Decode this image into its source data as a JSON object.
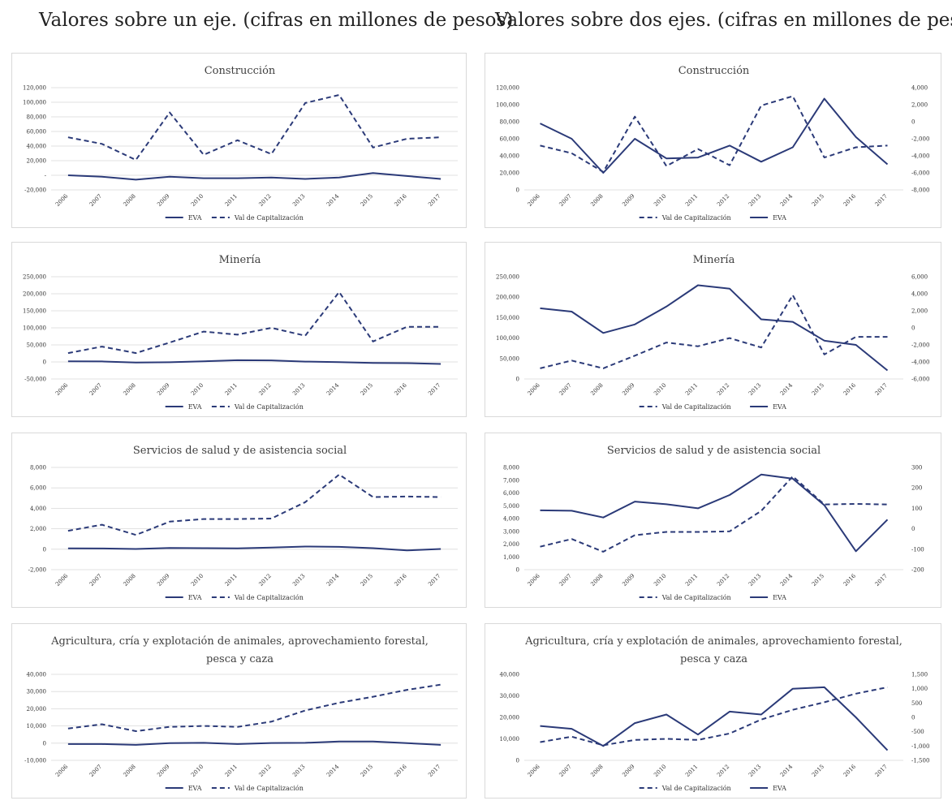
{
  "headings": {
    "left": "Valores sobre un eje. (cifras en millones de pesos)",
    "right": "Valores sobre dos ejes. (cifras en millones de pesos)"
  },
  "colors": {
    "series": "#2b3a78",
    "grid": "#d9d9d9",
    "border": "#d9d9d9"
  },
  "chart_data": [
    {
      "type": "line",
      "title": [
        "Construcción"
      ],
      "x": [
        "2006",
        "2007",
        "2008",
        "2009",
        "2010",
        "2011",
        "2012",
        "2013",
        "2014",
        "2015",
        "2016",
        "2017"
      ],
      "ylim": [
        -20000,
        120000
      ],
      "yticks": [
        -20000,
        0,
        20000,
        40000,
        60000,
        80000,
        100000,
        120000
      ],
      "ytick_labels": [
        "-20,000",
        "-",
        "20,000",
        "40,000",
        "60,000",
        "80,000",
        "100,000",
        "120,000"
      ],
      "legend": [
        "EVA",
        "Val de Capitalización"
      ],
      "series": [
        {
          "name": "EVA",
          "style": "solid",
          "values": [
            0,
            -2000,
            -6000,
            -2000,
            -4000,
            -4000,
            -3000,
            -5000,
            -3000,
            3000,
            -1000,
            -5000
          ]
        },
        {
          "name": "Val de Capitalización",
          "style": "dashed",
          "values": [
            52000,
            43000,
            21000,
            86000,
            28000,
            48000,
            29000,
            99000,
            110000,
            38000,
            50000,
            52000
          ]
        }
      ]
    },
    {
      "type": "line",
      "title": [
        "Construcción"
      ],
      "x": [
        "2006",
        "2007",
        "2008",
        "2009",
        "2010",
        "2011",
        "2012",
        "2013",
        "2014",
        "2015",
        "2016",
        "2017"
      ],
      "ylim": [
        0,
        120000
      ],
      "yticks": [
        0,
        20000,
        40000,
        60000,
        80000,
        100000,
        120000
      ],
      "ytick_labels": [
        "0",
        "20,000",
        "40,000",
        "60,000",
        "80,000",
        "100,000",
        "120,000"
      ],
      "y2lim": [
        -8000,
        4000
      ],
      "y2ticks": [
        -8000,
        -6000,
        -4000,
        -2000,
        0,
        2000,
        4000
      ],
      "y2tick_labels": [
        "-8,000",
        "-6,000",
        "-4,000",
        "-2,000",
        "0",
        "2,000",
        "4,000"
      ],
      "legend": [
        "Val de Capitalización",
        "EVA"
      ],
      "series": [
        {
          "name": "Val de Capitalización",
          "style": "dashed",
          "axis": "left",
          "values": [
            52000,
            43000,
            21000,
            86000,
            28000,
            48000,
            29000,
            99000,
            110000,
            38000,
            50000,
            52000
          ]
        },
        {
          "name": "EVA",
          "style": "solid",
          "axis": "right",
          "values": [
            -200,
            -2000,
            -6000,
            -2000,
            -4300,
            -4200,
            -2800,
            -4700,
            -3000,
            2700,
            -1800,
            -5000
          ]
        }
      ]
    },
    {
      "type": "line",
      "title": [
        "Minería"
      ],
      "x": [
        "2006",
        "2007",
        "2008",
        "2009",
        "2010",
        "2011",
        "2012",
        "2013",
        "2014",
        "2015",
        "2016",
        "2017"
      ],
      "ylim": [
        -50000,
        250000
      ],
      "yticks": [
        -50000,
        0,
        50000,
        100000,
        150000,
        200000,
        250000
      ],
      "ytick_labels": [
        "-50,000",
        "0",
        "50,000",
        "100,000",
        "150,000",
        "200,000",
        "250,000"
      ],
      "legend": [
        "EVA",
        "Val de Capitalización"
      ],
      "series": [
        {
          "name": "EVA",
          "style": "solid",
          "values": [
            2000,
            1500,
            -2000,
            -1000,
            2000,
            5000,
            4500,
            1000,
            -500,
            -3000,
            -3500,
            -6000
          ]
        },
        {
          "name": "Val de Capitalización",
          "style": "dashed",
          "values": [
            26000,
            45000,
            26000,
            57000,
            89000,
            80000,
            100000,
            77000,
            205000,
            60000,
            103000,
            103000
          ]
        }
      ]
    },
    {
      "type": "line",
      "title": [
        "Minería"
      ],
      "x": [
        "2006",
        "2007",
        "2008",
        "2009",
        "2010",
        "2011",
        "2012",
        "2013",
        "2014",
        "2015",
        "2016",
        "2017"
      ],
      "ylim": [
        0,
        250000
      ],
      "yticks": [
        0,
        50000,
        100000,
        150000,
        200000,
        250000
      ],
      "ytick_labels": [
        "0",
        "50,000",
        "100,000",
        "150,000",
        "200,000",
        "250,000"
      ],
      "y2lim": [
        -6000,
        6000
      ],
      "y2ticks": [
        -6000,
        -4000,
        -2000,
        0,
        2000,
        4000,
        6000
      ],
      "y2tick_labels": [
        "-6,000",
        "-4,000",
        "-2,000",
        "0",
        "2,000",
        "4,000",
        "6,000"
      ],
      "legend": [
        "Val de Capitalización",
        "EVA"
      ],
      "series": [
        {
          "name": "Val de Capitalización",
          "style": "dashed",
          "axis": "left",
          "values": [
            26000,
            45000,
            26000,
            57000,
            89000,
            80000,
            100000,
            77000,
            205000,
            60000,
            103000,
            103000
          ]
        },
        {
          "name": "EVA",
          "style": "solid",
          "axis": "right",
          "values": [
            2300,
            1900,
            -600,
            400,
            2500,
            5000,
            4600,
            1000,
            700,
            -1500,
            -2000,
            -5000
          ]
        }
      ]
    },
    {
      "type": "line",
      "title": [
        "Servicios de salud y de asistencia social"
      ],
      "x": [
        "2006",
        "2007",
        "2008",
        "2009",
        "2010",
        "2011",
        "2012",
        "2013",
        "2014",
        "2015",
        "2016",
        "2017"
      ],
      "ylim": [
        -2000,
        8000
      ],
      "yticks": [
        -2000,
        0,
        2000,
        4000,
        6000,
        8000
      ],
      "ytick_labels": [
        "-2,000",
        "0",
        "2,000",
        "4,000",
        "6,000",
        "8,000"
      ],
      "legend": [
        "EVA",
        "Val de Capitalización"
      ],
      "series": [
        {
          "name": "EVA",
          "style": "solid",
          "values": [
            80,
            70,
            20,
            120,
            100,
            90,
            160,
            260,
            230,
            100,
            -120,
            20
          ]
        },
        {
          "name": "Val de Capitalización",
          "style": "dashed",
          "values": [
            1800,
            2400,
            1400,
            2700,
            2950,
            2950,
            3000,
            4600,
            7300,
            5100,
            5150,
            5100
          ]
        }
      ]
    },
    {
      "type": "line",
      "title": [
        "Servicios de salud y de asistencia social"
      ],
      "x": [
        "2006",
        "2007",
        "2008",
        "2009",
        "2010",
        "2011",
        "2012",
        "2013",
        "2014",
        "2015",
        "2016",
        "2017"
      ],
      "ylim": [
        0,
        8000
      ],
      "yticks": [
        0,
        1000,
        2000,
        3000,
        4000,
        5000,
        6000,
        7000,
        8000
      ],
      "ytick_labels": [
        "0",
        "1,000",
        "2,000",
        "3,000",
        "4,000",
        "5,000",
        "6,000",
        "7,000",
        "8,000"
      ],
      "y2lim": [
        -200,
        300
      ],
      "y2ticks": [
        -200,
        -100,
        0,
        100,
        200,
        300
      ],
      "y2tick_labels": [
        "-200",
        "-100",
        "0",
        "100",
        "200",
        "300"
      ],
      "legend": [
        "Val de Capitalización",
        "EVA"
      ],
      "series": [
        {
          "name": "Val de Capitalización",
          "style": "dashed",
          "axis": "left",
          "values": [
            1800,
            2400,
            1400,
            2700,
            2950,
            2950,
            3000,
            4600,
            7300,
            5100,
            5150,
            5100
          ]
        },
        {
          "name": "EVA",
          "style": "solid",
          "axis": "right",
          "values": [
            90,
            88,
            55,
            133,
            120,
            100,
            165,
            265,
            245,
            115,
            -110,
            45
          ]
        }
      ]
    },
    {
      "type": "line",
      "title": [
        "Agricultura, cría y explotación de animales, aprovechamiento forestal,",
        "pesca y caza"
      ],
      "x": [
        "2006",
        "2007",
        "2008",
        "2009",
        "2010",
        "2011",
        "2012",
        "2013",
        "2014",
        "2015",
        "2016",
        "2017"
      ],
      "ylim": [
        -10000,
        40000
      ],
      "yticks": [
        -10000,
        0,
        10000,
        20000,
        30000,
        40000
      ],
      "ytick_labels": [
        "-10,000",
        "0",
        "10,000",
        "20,000",
        "30,000",
        "40,000"
      ],
      "legend": [
        "EVA",
        "Val de Capitalización"
      ],
      "series": [
        {
          "name": "EVA",
          "style": "solid",
          "values": [
            -500,
            -500,
            -1000,
            0,
            200,
            -500,
            100,
            200,
            1000,
            1000,
            0,
            -1000
          ]
        },
        {
          "name": "Val de Capitalización",
          "style": "dashed",
          "values": [
            8500,
            11000,
            7000,
            9500,
            10000,
            9500,
            12500,
            19000,
            23500,
            27000,
            31000,
            34000
          ]
        }
      ]
    },
    {
      "type": "line",
      "title": [
        "Agricultura, cría y explotación de animales, aprovechamiento forestal,",
        "pesca y caza"
      ],
      "x": [
        "2006",
        "2007",
        "2008",
        "2009",
        "2010",
        "2011",
        "2012",
        "2013",
        "2014",
        "2015",
        "2016",
        "2017"
      ],
      "ylim": [
        0,
        40000
      ],
      "yticks": [
        0,
        10000,
        20000,
        30000,
        40000
      ],
      "ytick_labels": [
        "0",
        "10,000",
        "20,000",
        "30,000",
        "40,000"
      ],
      "y2lim": [
        -1500,
        1500
      ],
      "y2ticks": [
        -1500,
        -1000,
        -500,
        0,
        500,
        1000,
        1500
      ],
      "y2tick_labels": [
        "-1,500",
        "-1,000",
        "-500",
        "0",
        "500",
        "1,000",
        "1,500"
      ],
      "legend": [
        "Val de Capitalización",
        "EVA"
      ],
      "series": [
        {
          "name": "Val de Capitalización",
          "style": "dashed",
          "axis": "left",
          "values": [
            8500,
            11000,
            7000,
            9500,
            10000,
            9500,
            12500,
            19000,
            23500,
            27000,
            31000,
            34000
          ]
        },
        {
          "name": "EVA",
          "style": "solid",
          "axis": "right",
          "values": [
            -300,
            -400,
            -1000,
            -200,
            100,
            -600,
            200,
            100,
            1000,
            1050,
            0,
            -1150
          ]
        }
      ]
    }
  ]
}
